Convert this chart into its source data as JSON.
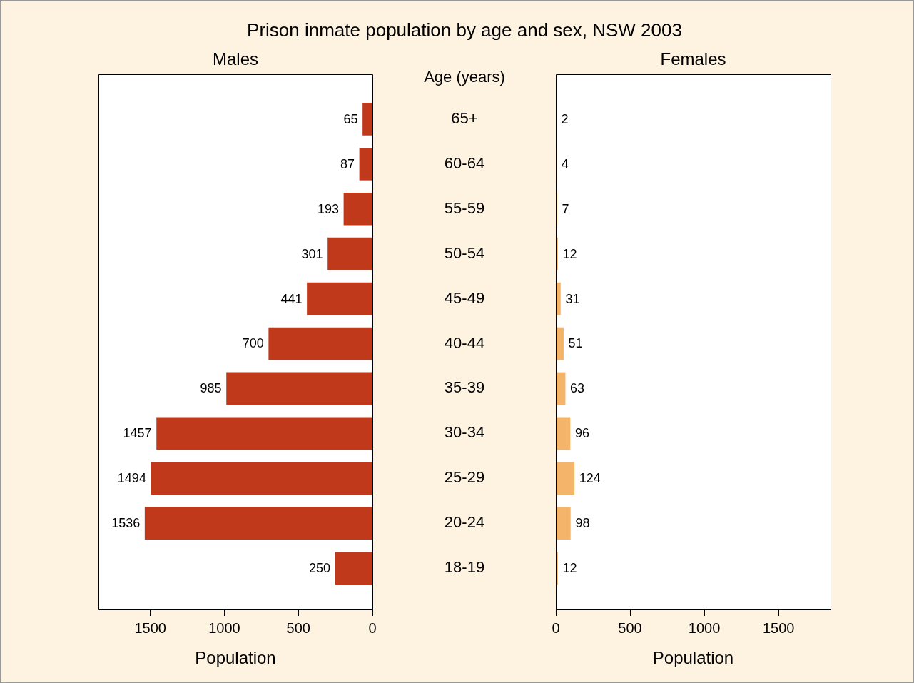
{
  "chart_data": [
    {
      "type": "bar",
      "orientation": "horizontal",
      "title": "Prison inmate population by age and sex, NSW 2003",
      "subtitle": "Males",
      "ylabel": "Age (years)",
      "xlabel": "Population",
      "categories": [
        "65+",
        "60-64",
        "55-59",
        "50-54",
        "45-49",
        "40-44",
        "35-39",
        "30-34",
        "25-29",
        "20-24",
        "18-19"
      ],
      "values": [
        65,
        87,
        193,
        301,
        441,
        700,
        985,
        1457,
        1494,
        1536,
        250
      ],
      "color": "#c1391b",
      "xlim": [
        1850,
        0
      ],
      "xticks": [
        0,
        500,
        1000,
        1500
      ],
      "data_labels": true
    },
    {
      "type": "bar",
      "orientation": "horizontal",
      "title": "Females",
      "xlabel": "Population",
      "categories": [
        null,
        null,
        null,
        null,
        null,
        null,
        null,
        null,
        null,
        null,
        null
      ],
      "values": [
        2,
        4,
        7,
        12,
        31,
        51,
        63,
        96,
        124,
        98,
        12
      ],
      "color": "#f4b56a",
      "xlim": [
        0,
        1850
      ],
      "xticks": [
        0,
        500,
        1000,
        1500
      ],
      "data_labels": true,
      "tick_labels": "x"
    }
  ]
}
